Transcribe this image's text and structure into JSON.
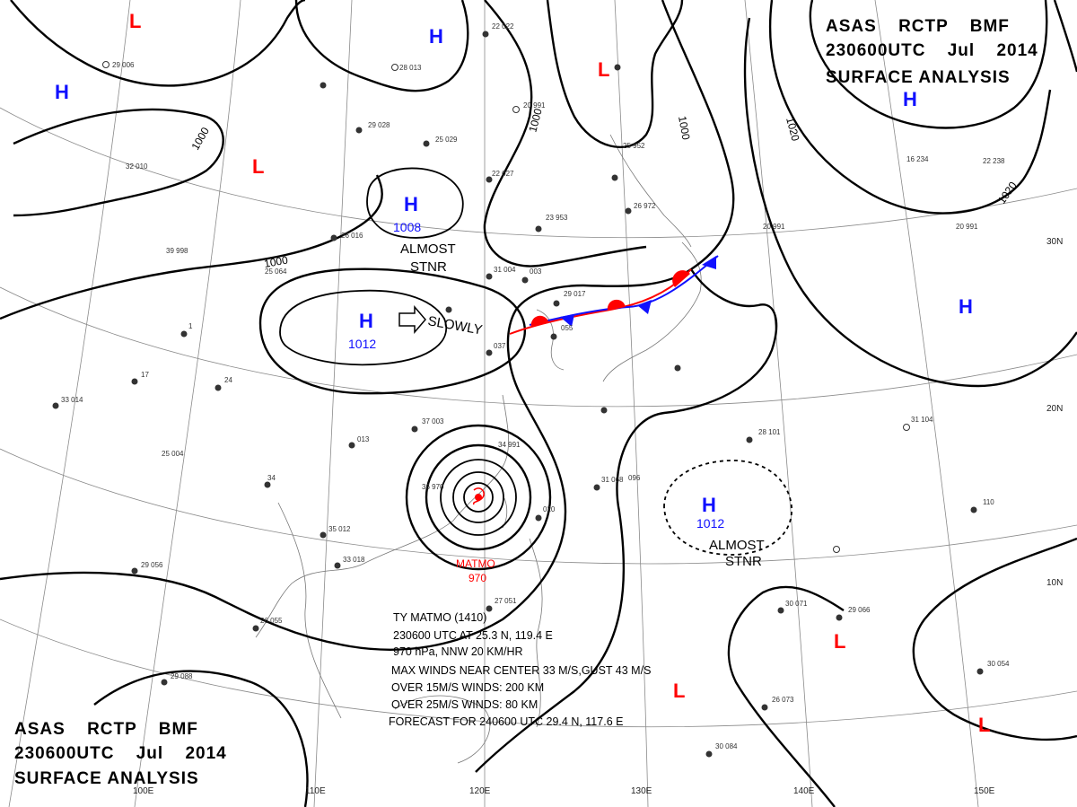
{
  "header_top_right": {
    "line1": "ASAS RCTP BMF",
    "line2": "230600UTC Jul 2014",
    "line3": "SURFACE ANALYSIS"
  },
  "header_bottom_left": {
    "line1": "ASAS RCTP BMF",
    "line2": "230600UTC Jul 2014",
    "line3": "SURFACE ANALYSIS"
  },
  "grid_labels": {
    "lon_110": "110E",
    "lon_120": "120E",
    "lon_130": "130E",
    "lon_140": "140E",
    "lon_150": "150E",
    "lon_100": "100E",
    "lat_30": "30N",
    "lat_20": "20N",
    "lat_10": "10N"
  },
  "isobar_labels": {
    "a": "1000",
    "b": "1000",
    "c": "1000",
    "d": "1000",
    "e": "1020",
    "f": "1020"
  },
  "pressure_centers": {
    "h_a": {
      "letter": "H",
      "value": "1008"
    },
    "h_b": {
      "letter": "H",
      "value": "1012"
    },
    "h_c": {
      "letter": "H",
      "value": "1012"
    },
    "h_d": {
      "letter": "H"
    },
    "h_e": {
      "letter": "H"
    },
    "h_f": {
      "letter": "H"
    },
    "h_g": {
      "letter": "H"
    },
    "l_a": {
      "letter": "L"
    },
    "l_b": {
      "letter": "L"
    },
    "l_c": {
      "letter": "L"
    },
    "l_d": {
      "letter": "L"
    },
    "l_e": {
      "letter": "L"
    },
    "l_f": {
      "letter": "L"
    }
  },
  "notes": {
    "almost_stnr_1a": "ALMOST",
    "almost_stnr_1b": "STNR",
    "slowly": "SLOWLY",
    "almost_stnr_2a": "ALMOST",
    "almost_stnr_2b": "STNR"
  },
  "typhoon": {
    "name": "MATMO",
    "pressure": "970"
  },
  "typhoon_info": {
    "line1": "TY MATMO (1410)",
    "line2": "230600 UTC AT 25.3 N, 119.4 E",
    "line3": "970 hPa, NNW 20 KM/HR",
    "line4": "MAX WINDS NEAR CENTER 33 M/S,GUST 43 M/S",
    "line5": "OVER 15M/S WINDS: 200 KM",
    "line6": "OVER 25M/S WINDS: 80 KM",
    "line7": "FORECAST FOR 240600 UTC 29.4 N, 117.6 E"
  },
  "colors": {
    "high": "#1010ff",
    "low": "#ff0000",
    "isobar": "#000000",
    "warm_front": "#ff0000",
    "cold_front": "#1010ff"
  }
}
